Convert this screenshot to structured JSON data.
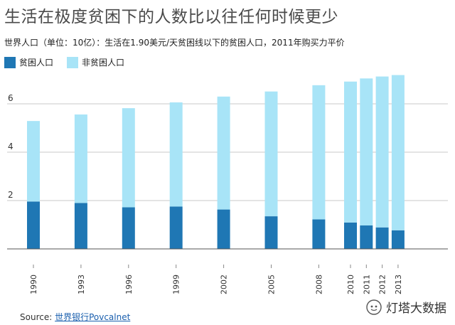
{
  "chart_data": {
    "type": "bar",
    "stacked": true,
    "title": "生活在极度贫困下的人数比以往任何时候更少",
    "subtitle": "世界人口（单位：10亿）：生活在1.90美元/天贫困线以下的贫困人口，2011年购买力平价",
    "categories": [
      "1990",
      "1993",
      "1996",
      "1999",
      "2002",
      "2005",
      "2008",
      "2010",
      "2011",
      "2012",
      "2013"
    ],
    "series": [
      {
        "name": "贫困人口",
        "color": "#1f77b4",
        "values": [
          1.96,
          1.9,
          1.72,
          1.75,
          1.63,
          1.35,
          1.22,
          1.09,
          0.97,
          0.89,
          0.77
        ]
      },
      {
        "name": "非贫困人口",
        "color": "#a8e4f7",
        "values": [
          3.33,
          3.66,
          4.1,
          4.31,
          4.67,
          5.16,
          5.55,
          5.83,
          6.08,
          6.24,
          6.42
        ]
      }
    ],
    "yticks": [
      2,
      4,
      6
    ],
    "ylim": [
      0,
      7.5
    ],
    "xlabel": "",
    "ylabel": ""
  },
  "source": {
    "label": "Source: ",
    "link": "世界银行Povcalnet"
  },
  "watermark": {
    "text": "灯塔大数据"
  }
}
